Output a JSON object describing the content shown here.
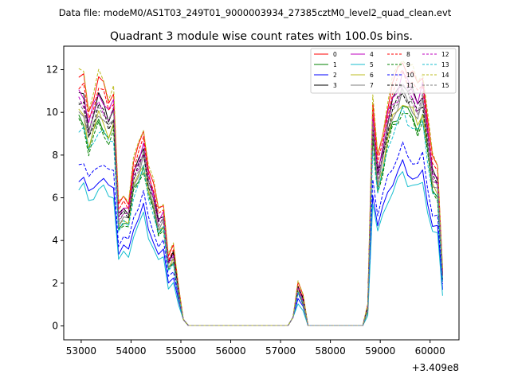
{
  "header": {
    "supertitle": "Data file: modeM0/AS1T03_249T01_9000003934_27385cztM0_level2_quad_clean.evt"
  },
  "chart_data": {
    "type": "line",
    "title": "Quadrant 3 module wise count rates with 100.0s bins.",
    "xlabel": "",
    "ylabel": "",
    "x_offset_label": "+3.409e8",
    "xlim": [
      52650,
      60580
    ],
    "ylim": [
      -0.65,
      13.1
    ],
    "x_ticks": [
      53000,
      54000,
      55000,
      56000,
      57000,
      58000,
      59000,
      60000
    ],
    "x_tick_labels": [
      "53000",
      "54000",
      "55000",
      "56000",
      "57000",
      "58000",
      "59000",
      "60000"
    ],
    "y_ticks": [
      0,
      2,
      4,
      6,
      8,
      10,
      12
    ],
    "y_tick_labels": [
      "0",
      "2",
      "4",
      "6",
      "8",
      "10",
      "12"
    ],
    "grid": false,
    "legend_position": "top-right",
    "x": [
      52950,
      53050,
      53150,
      53250,
      53350,
      53450,
      53550,
      53650,
      53750,
      53850,
      53950,
      54050,
      54150,
      54250,
      54350,
      54450,
      54550,
      54650,
      54750,
      54850,
      54950,
      55050,
      55150,
      55250,
      55350,
      55450,
      55550,
      55650,
      55750,
      55850,
      55950,
      56050,
      56150,
      56250,
      56350,
      56450,
      56550,
      56650,
      56750,
      56850,
      56950,
      57050,
      57150,
      57250,
      57350,
      57450,
      57550,
      57650,
      57750,
      57850,
      57950,
      58050,
      58150,
      58250,
      58350,
      58450,
      58550,
      58650,
      58750,
      58850,
      58950,
      59050,
      59150,
      59250,
      59350,
      59450,
      59550,
      59650,
      59750,
      59850,
      59950,
      60050,
      60150,
      60250
    ],
    "base_profile": [
      11.0,
      10.9,
      9.5,
      10.2,
      10.9,
      10.6,
      10.0,
      10.4,
      5.2,
      5.6,
      5.4,
      7.2,
      7.8,
      8.6,
      7.0,
      6.2,
      5.0,
      5.3,
      3.0,
      3.4,
      1.6,
      0.3,
      0.02,
      0.02,
      0.02,
      0.02,
      0.02,
      0.02,
      0.02,
      0.02,
      0.02,
      0.02,
      0.02,
      0.02,
      0.02,
      0.02,
      0.02,
      0.02,
      0.02,
      0.02,
      0.02,
      0.02,
      0.02,
      0.4,
      1.8,
      1.2,
      0.02,
      0.02,
      0.02,
      0.02,
      0.02,
      0.02,
      0.02,
      0.02,
      0.02,
      0.02,
      0.02,
      0.02,
      0.8,
      9.9,
      7.3,
      8.4,
      9.8,
      10.7,
      11.2,
      11.8,
      11.3,
      11.1,
      10.6,
      11.2,
      9.2,
      7.3,
      7.0,
      2.4
    ],
    "series": [
      {
        "name": "0",
        "color": "#ff0000",
        "dash": "solid",
        "scale": 1.04,
        "shift": 0.2
      },
      {
        "name": "1",
        "color": "#008000",
        "dash": "solid",
        "scale": 0.88,
        "shift": 0.0
      },
      {
        "name": "2",
        "color": "#0000ff",
        "dash": "solid",
        "scale": 0.62,
        "shift": 0.2
      },
      {
        "name": "3",
        "color": "#000000",
        "dash": "solid",
        "scale": 0.97,
        "shift": 0.1
      },
      {
        "name": "4",
        "color": "#bf00bf",
        "dash": "solid",
        "scale": 1.0,
        "shift": 0.0
      },
      {
        "name": "5",
        "color": "#17becf",
        "dash": "solid",
        "scale": 0.6,
        "shift": 0.0
      },
      {
        "name": "6",
        "color": "#bcbd22",
        "dash": "solid",
        "scale": 0.9,
        "shift": 0.0
      },
      {
        "name": "7",
        "color": "#7f7f7f",
        "dash": "solid",
        "scale": 0.93,
        "shift": -0.1
      },
      {
        "name": "8",
        "color": "#ff0000",
        "dash": "dashed",
        "scale": 1.01,
        "shift": 0.1
      },
      {
        "name": "9",
        "color": "#008000",
        "dash": "dashed",
        "scale": 0.86,
        "shift": 0.0
      },
      {
        "name": "10",
        "color": "#0000ff",
        "dash": "dashed",
        "scale": 0.68,
        "shift": 0.3
      },
      {
        "name": "11",
        "color": "#000000",
        "dash": "dashed",
        "scale": 0.92,
        "shift": 0.2
      },
      {
        "name": "12",
        "color": "#bf00bf",
        "dash": "dashed",
        "scale": 0.96,
        "shift": 0.0
      },
      {
        "name": "13",
        "color": "#17becf",
        "dash": "dashed",
        "scale": 0.84,
        "shift": 0.1
      },
      {
        "name": "14",
        "color": "#bcbd22",
        "dash": "dashed",
        "scale": 1.06,
        "shift": 0.2
      },
      {
        "name": "15",
        "color": "#7f7f7f",
        "dash": "dashed",
        "scale": 0.95,
        "shift": 0.0
      }
    ]
  }
}
